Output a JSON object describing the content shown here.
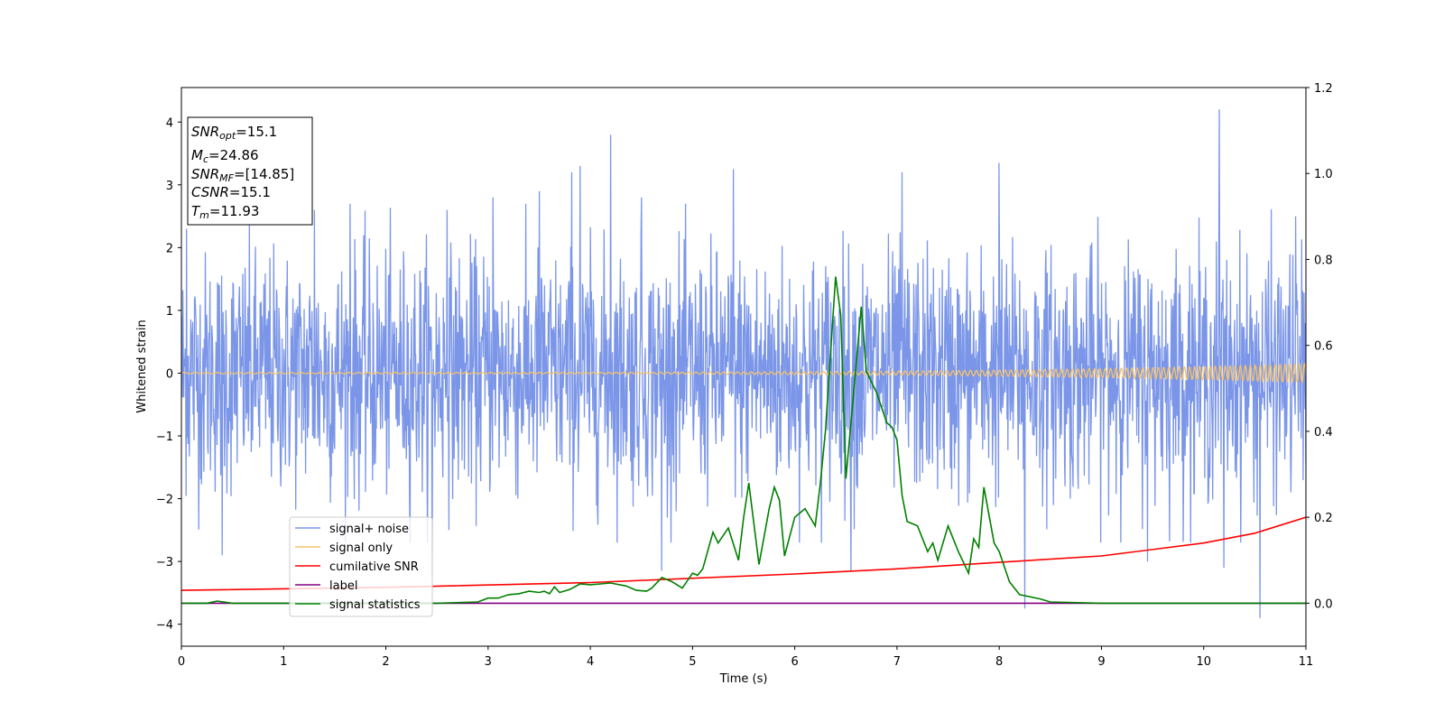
{
  "chart_data": {
    "type": "line",
    "xlabel": "Time (s)",
    "ylabel": "Whitened strain",
    "xlim": [
      0,
      11
    ],
    "ylim_left": [
      -4.35,
      4.55
    ],
    "ylim_right": [
      -0.1,
      1.2
    ],
    "x_ticks": [
      "0",
      "1",
      "2",
      "3",
      "4",
      "5",
      "6",
      "7",
      "8",
      "9",
      "10",
      "11"
    ],
    "y_ticks_left": [
      "−4",
      "−3",
      "−2",
      "−1",
      "0",
      "1",
      "2",
      "3",
      "4"
    ],
    "y_ticks_right": [
      "0.0",
      "0.2",
      "0.4",
      "0.6",
      "0.8",
      "1.0",
      "1.2"
    ],
    "grid": false,
    "legend_position": "lower-left",
    "legend": [
      {
        "label": "signal+ noise",
        "color": "#7b96e8"
      },
      {
        "label": "signal only",
        "color": "#f5c26b"
      },
      {
        "label": "cumilative SNR",
        "color": "#ff0000"
      },
      {
        "label": "label",
        "color": "#800080"
      },
      {
        "label": "signal statistics",
        "color": "#008000"
      }
    ],
    "info_box": {
      "snr_opt": {
        "base": "SNR",
        "sub": "opt",
        "value": "=15.1"
      },
      "mc": {
        "base": "M",
        "sub": "c",
        "value": "=24.86"
      },
      "snr_mf": {
        "base": "SNR",
        "sub": "MF",
        "value": "=[14.85]"
      },
      "csnr": {
        "base": "CSNR",
        "sub": "",
        "value": "=15.1"
      },
      "tm": {
        "base": "T",
        "sub": "m",
        "value": "=11.93"
      }
    },
    "series": [
      {
        "name": "signal+ noise",
        "axis": "left",
        "kind": "noise",
        "color": "#7b96e8",
        "sigma": 0.95,
        "peaks": [
          {
            "x": 0.05,
            "y": 2.3
          },
          {
            "x": 0.4,
            "y": -2.9
          },
          {
            "x": 1.3,
            "y": 2.6
          },
          {
            "x": 1.65,
            "y": 2.7
          },
          {
            "x": 2.6,
            "y": 2.6
          },
          {
            "x": 2.45,
            "y": -3.25
          },
          {
            "x": 3.05,
            "y": 2.8
          },
          {
            "x": 3.5,
            "y": 2.9
          },
          {
            "x": 3.82,
            "y": 3.2
          },
          {
            "x": 3.9,
            "y": 3.3
          },
          {
            "x": 4.2,
            "y": 3.8
          },
          {
            "x": 4.5,
            "y": 2.8
          },
          {
            "x": 4.7,
            "y": -3.15
          },
          {
            "x": 5.4,
            "y": 3.25
          },
          {
            "x": 6.55,
            "y": -3.15
          },
          {
            "x": 7.05,
            "y": 3.2
          },
          {
            "x": 8.0,
            "y": 3.35
          },
          {
            "x": 8.25,
            "y": -3.75
          },
          {
            "x": 9.45,
            "y": -3.0
          },
          {
            "x": 10.15,
            "y": 4.2
          },
          {
            "x": 10.2,
            "y": -3.1
          },
          {
            "x": 10.55,
            "y": -3.9
          },
          {
            "x": 10.9,
            "y": 2.5
          }
        ]
      },
      {
        "name": "signal only",
        "axis": "left",
        "kind": "chirp",
        "color": "#f5c26b",
        "amp_start": 0.01,
        "amp_end": 0.15
      },
      {
        "name": "cumilative SNR",
        "axis": "right",
        "color": "#ff0000",
        "points": [
          [
            0,
            0.03
          ],
          [
            2,
            0.037
          ],
          [
            4,
            0.048
          ],
          [
            6,
            0.068
          ],
          [
            7,
            0.08
          ],
          [
            8,
            0.095
          ],
          [
            9,
            0.11
          ],
          [
            10,
            0.14
          ],
          [
            10.5,
            0.163
          ],
          [
            11,
            0.2
          ]
        ]
      },
      {
        "name": "label",
        "axis": "right",
        "color": "#800080",
        "points": [
          [
            0,
            0.0
          ],
          [
            11,
            0.0
          ]
        ]
      },
      {
        "name": "signal statistics",
        "axis": "right",
        "color": "#008000",
        "points": [
          [
            0,
            0.0
          ],
          [
            0.25,
            0.0
          ],
          [
            0.35,
            0.005
          ],
          [
            0.5,
            0.0
          ],
          [
            1,
            0.0
          ],
          [
            2,
            0.0
          ],
          [
            2.5,
            0.0
          ],
          [
            2.9,
            0.003
          ],
          [
            3.0,
            0.012
          ],
          [
            3.1,
            0.012
          ],
          [
            3.2,
            0.02
          ],
          [
            3.3,
            0.022
          ],
          [
            3.4,
            0.028
          ],
          [
            3.5,
            0.025
          ],
          [
            3.55,
            0.028
          ],
          [
            3.6,
            0.022
          ],
          [
            3.65,
            0.038
          ],
          [
            3.7,
            0.025
          ],
          [
            3.8,
            0.032
          ],
          [
            3.9,
            0.045
          ],
          [
            4.0,
            0.043
          ],
          [
            4.2,
            0.047
          ],
          [
            4.35,
            0.04
          ],
          [
            4.45,
            0.03
          ],
          [
            4.55,
            0.028
          ],
          [
            4.6,
            0.035
          ],
          [
            4.7,
            0.06
          ],
          [
            4.8,
            0.05
          ],
          [
            4.9,
            0.035
          ],
          [
            5.0,
            0.07
          ],
          [
            5.05,
            0.065
          ],
          [
            5.1,
            0.08
          ],
          [
            5.2,
            0.165
          ],
          [
            5.25,
            0.14
          ],
          [
            5.35,
            0.175
          ],
          [
            5.45,
            0.1
          ],
          [
            5.5,
            0.2
          ],
          [
            5.55,
            0.28
          ],
          [
            5.65,
            0.09
          ],
          [
            5.75,
            0.22
          ],
          [
            5.8,
            0.27
          ],
          [
            5.85,
            0.24
          ],
          [
            5.9,
            0.11
          ],
          [
            6.0,
            0.2
          ],
          [
            6.1,
            0.22
          ],
          [
            6.2,
            0.18
          ],
          [
            6.25,
            0.28
          ],
          [
            6.3,
            0.4
          ],
          [
            6.4,
            0.76
          ],
          [
            6.45,
            0.67
          ],
          [
            6.5,
            0.29
          ],
          [
            6.55,
            0.42
          ],
          [
            6.65,
            0.69
          ],
          [
            6.7,
            0.54
          ],
          [
            6.8,
            0.49
          ],
          [
            6.9,
            0.42
          ],
          [
            6.95,
            0.41
          ],
          [
            7.0,
            0.38
          ],
          [
            7.05,
            0.25
          ],
          [
            7.1,
            0.19
          ],
          [
            7.2,
            0.18
          ],
          [
            7.3,
            0.12
          ],
          [
            7.35,
            0.14
          ],
          [
            7.4,
            0.1
          ],
          [
            7.5,
            0.18
          ],
          [
            7.6,
            0.12
          ],
          [
            7.7,
            0.07
          ],
          [
            7.75,
            0.15
          ],
          [
            7.8,
            0.13
          ],
          [
            7.85,
            0.27
          ],
          [
            7.95,
            0.14
          ],
          [
            8.0,
            0.12
          ],
          [
            8.1,
            0.05
          ],
          [
            8.2,
            0.02
          ],
          [
            8.4,
            0.01
          ],
          [
            8.5,
            0.003
          ],
          [
            9.0,
            0.0
          ],
          [
            11,
            0.0
          ]
        ]
      }
    ]
  }
}
